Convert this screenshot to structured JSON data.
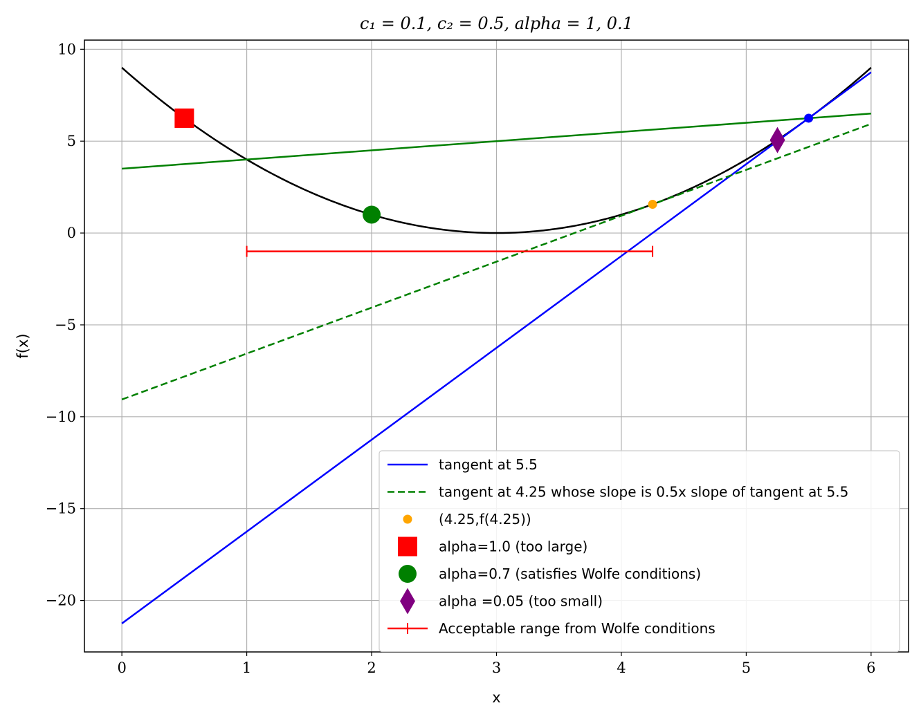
{
  "chart_data": {
    "type": "line",
    "title": "c₁ = 0.1, c₂ = 0.5, alpha = 1, 0.1",
    "xlabel": "x",
    "ylabel": "f(x)",
    "xlim": [
      -0.3,
      6.3
    ],
    "ylim": [
      -22.8,
      10.5
    ],
    "xticks": [
      0,
      1,
      2,
      3,
      4,
      5,
      6
    ],
    "xtick_labels": [
      "0",
      "1",
      "2",
      "3",
      "4",
      "5",
      "6"
    ],
    "yticks": [
      -20,
      -15,
      -10,
      -5,
      0,
      5,
      10
    ],
    "ytick_labels": [
      "−20",
      "−15",
      "−10",
      "−5",
      "0",
      "5",
      "10"
    ],
    "grid": true,
    "legend_position": "lower-right",
    "series": [
      {
        "kind": "line",
        "color": "#000000",
        "style": "solid",
        "x": [
          0,
          0.5,
          1,
          1.5,
          2,
          2.5,
          3,
          3.5,
          4,
          4.5,
          5,
          5.5,
          6
        ],
        "y": [
          9,
          6.25,
          4,
          2.25,
          1,
          0.25,
          0,
          0.25,
          1,
          2.25,
          4,
          6.25,
          9
        ]
      },
      {
        "kind": "line",
        "color": "#008000",
        "style": "solid",
        "x": [
          0,
          6
        ],
        "y": [
          3.5,
          6.5
        ]
      },
      {
        "name": "tangent at 5.5",
        "kind": "line",
        "color": "#0000ff",
        "style": "solid",
        "x": [
          0,
          6
        ],
        "y": [
          -21.25,
          8.75
        ]
      },
      {
        "name": "tangent at 4.25 whose slope is 0.5x slope of tangent at 5.5",
        "kind": "line",
        "color": "#008000",
        "style": "dashed",
        "x": [
          0,
          6
        ],
        "y": [
          -9.06,
          5.94
        ]
      },
      {
        "name": "(4.25,f(4.25))",
        "kind": "marker",
        "marker": "circle-small",
        "color": "#ffa500",
        "x": [
          4.25
        ],
        "y": [
          1.5625
        ]
      },
      {
        "name": "alpha=1.0 (too large)",
        "kind": "marker",
        "marker": "square",
        "color": "#ff0000",
        "x": [
          0.5
        ],
        "y": [
          6.25
        ]
      },
      {
        "name": "alpha=0.7 (satisfies Wolfe conditions)",
        "kind": "marker",
        "marker": "circle-large",
        "color": "#008000",
        "x": [
          2
        ],
        "y": [
          1
        ]
      },
      {
        "name": "alpha =0.05 (too small)",
        "kind": "marker",
        "marker": "diamond",
        "color": "#800080",
        "x": [
          5.25
        ],
        "y": [
          5.06
        ]
      },
      {
        "name": "Acceptable range from Wolfe conditions",
        "kind": "range",
        "color": "#ff0000",
        "x": [
          1,
          4.25
        ],
        "y": [
          -1,
          -1
        ]
      },
      {
        "kind": "marker",
        "marker": "circle-small",
        "color": "#0000ff",
        "x": [
          5.5
        ],
        "y": [
          6.25
        ]
      }
    ]
  }
}
